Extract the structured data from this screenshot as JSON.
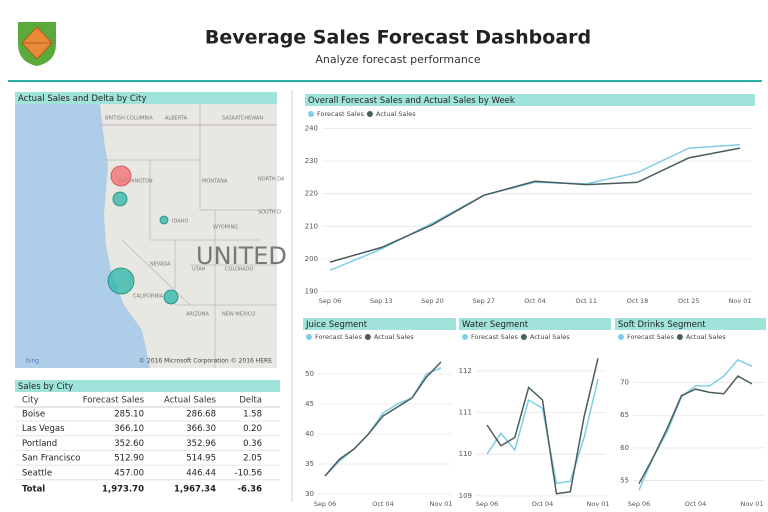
{
  "header": {
    "title": "Beverage Sales Forecast Dashboard",
    "subtitle": "Analyze forecast performance"
  },
  "map": {
    "title": "Actual Sales and Delta by City",
    "labels": [
      "BRITISH COLUMBIA",
      "ALBERTA",
      "SASKATCHEWAN",
      "WASHINGTON",
      "MONTANA",
      "NORTH DA",
      "IDAHO",
      "WYOMING",
      "SOUTH D",
      "NEVADA",
      "UTAH",
      "COLORADO",
      "CALIFORNIA",
      "ARIZONA",
      "NEW MEXICO",
      "UNITED"
    ],
    "logo": "bing",
    "attribution": "© 2016 Microsoft Corporation   © 2016 HERE"
  },
  "table": {
    "title": "Sales by City",
    "columns": [
      "City",
      "Forecast Sales",
      "Actual Sales",
      "Delta"
    ],
    "rows": [
      [
        "Boise",
        "285.10",
        "286.68",
        "1.58"
      ],
      [
        "Las Vegas",
        "366.10",
        "366.30",
        "0.20"
      ],
      [
        "Portland",
        "352.60",
        "352.96",
        "0.36"
      ],
      [
        "San Francisco",
        "512.90",
        "514.95",
        "2.05"
      ],
      [
        "Seattle",
        "457.00",
        "446.44",
        "-10.56"
      ]
    ],
    "total": [
      "Total",
      "1,973.70",
      "1,967.34",
      "-6.36"
    ]
  },
  "chart_data": [
    {
      "type": "line",
      "title": "Overall Forecast Sales and Actual Sales by Week",
      "categories": [
        "Sep 06",
        "Sep 13",
        "Sep 20",
        "Sep 27",
        "Oct 04",
        "Oct 11",
        "Oct 18",
        "Oct 25",
        "Nov 01"
      ],
      "series": [
        {
          "name": "Forecast Sales",
          "color": "#7fcde8",
          "values": [
            196.5,
            203,
            211,
            219.5,
            223.5,
            223,
            226.5,
            234,
            235
          ]
        },
        {
          "name": "Actual Sales",
          "color": "#4a5d5e",
          "values": [
            199,
            203.5,
            210.5,
            219.5,
            223.8,
            222.8,
            223.5,
            231,
            234
          ]
        }
      ],
      "ylim": [
        188,
        242
      ],
      "yticks": [
        190,
        200,
        210,
        220,
        230,
        240
      ],
      "grid": true
    },
    {
      "type": "line",
      "title": "Juice Segment",
      "categories": [
        "Sep 06",
        null,
        null,
        null,
        "Oct 04",
        null,
        null,
        null,
        "Nov 01"
      ],
      "series": [
        {
          "name": "Forecast Sales",
          "color": "#7fcde8",
          "values": [
            33,
            35.5,
            37.5,
            40,
            43.5,
            45,
            46,
            50,
            51
          ]
        },
        {
          "name": "Actual Sales",
          "color": "#4a5d5e",
          "values": [
            33,
            35.8,
            37.5,
            40,
            43,
            44.5,
            46,
            49.5,
            52
          ]
        }
      ],
      "ylim": [
        29,
        54
      ],
      "yticks": [
        30,
        35,
        40,
        45,
        50
      ],
      "grid": true
    },
    {
      "type": "line",
      "title": "Water Segment",
      "categories": [
        "Sep 06",
        null,
        null,
        null,
        "Oct 04",
        null,
        null,
        null,
        "Nov 01"
      ],
      "series": [
        {
          "name": "Forecast Sales",
          "color": "#7fcde8",
          "values": [
            110,
            110.5,
            110.1,
            111.3,
            111.1,
            109.3,
            109.35,
            110.4,
            111.8
          ]
        },
        {
          "name": "Actual Sales",
          "color": "#4a5d5e",
          "values": [
            110.7,
            110.2,
            110.4,
            111.6,
            111.3,
            109.05,
            109.1,
            110.9,
            112.3
          ]
        }
      ],
      "ylim": [
        108.9,
        112.5
      ],
      "yticks": [
        109,
        110,
        111,
        112
      ],
      "grid": true
    },
    {
      "type": "line",
      "title": "Soft Drinks Segment",
      "categories": [
        "Sep 06",
        null,
        null,
        null,
        "Oct 04",
        null,
        null,
        null,
        "Nov 01"
      ],
      "series": [
        {
          "name": "Forecast Sales",
          "color": "#7fcde8",
          "values": [
            53.5,
            58.5,
            62.5,
            67.8,
            69.5,
            69.5,
            71,
            73.5,
            72.5
          ]
        },
        {
          "name": "Actual Sales",
          "color": "#4a5d5e",
          "values": [
            54.5,
            58.5,
            63,
            68,
            69,
            68.5,
            68.3,
            71,
            69.8
          ]
        }
      ],
      "ylim": [
        52,
        75
      ],
      "yticks": [
        55,
        60,
        65,
        70
      ],
      "grid": true
    }
  ]
}
